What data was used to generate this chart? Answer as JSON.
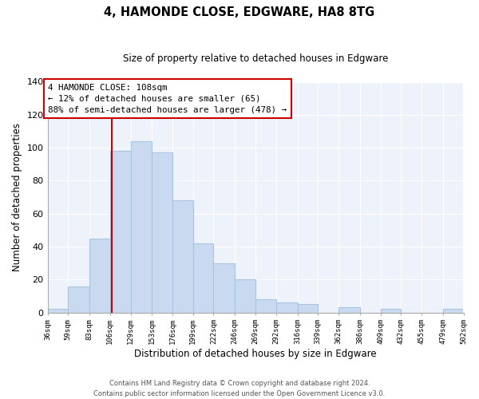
{
  "title": "4, HAMONDE CLOSE, EDGWARE, HA8 8TG",
  "subtitle": "Size of property relative to detached houses in Edgware",
  "xlabel": "Distribution of detached houses by size in Edgware",
  "ylabel": "Number of detached properties",
  "bar_color": "#c9daf0",
  "bar_edge_color": "#a8c4e0",
  "background_color": "#ffffff",
  "plot_bg_color": "#eef3fb",
  "grid_color": "#ffffff",
  "annotation_box_edge_color": "#cc0000",
  "vline_color": "#cc0000",
  "bin_edges": [
    36,
    59,
    83,
    106,
    129,
    153,
    176,
    199,
    222,
    246,
    269,
    292,
    316,
    339,
    362,
    386,
    409,
    432,
    455,
    479,
    502
  ],
  "counts": [
    2,
    16,
    45,
    98,
    104,
    97,
    68,
    42,
    30,
    20,
    8,
    6,
    5,
    0,
    3,
    0,
    2,
    0,
    0,
    2
  ],
  "vline_x": 108,
  "annotation_line1": "4 HAMONDE CLOSE: 108sqm",
  "annotation_line2": "← 12% of detached houses are smaller (65)",
  "annotation_line3": "88% of semi-detached houses are larger (478) →",
  "ylim": [
    0,
    140
  ],
  "yticks": [
    0,
    20,
    40,
    60,
    80,
    100,
    120,
    140
  ],
  "tick_labels": [
    "36sqm",
    "59sqm",
    "83sqm",
    "106sqm",
    "129sqm",
    "153sqm",
    "176sqm",
    "199sqm",
    "222sqm",
    "246sqm",
    "269sqm",
    "292sqm",
    "316sqm",
    "339sqm",
    "362sqm",
    "386sqm",
    "409sqm",
    "432sqm",
    "455sqm",
    "479sqm",
    "502sqm"
  ],
  "footer_line1": "Contains HM Land Registry data © Crown copyright and database right 2024.",
  "footer_line2": "Contains public sector information licensed under the Open Government Licence v3.0."
}
